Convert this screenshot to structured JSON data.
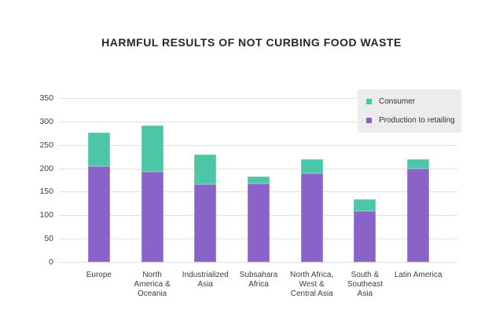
{
  "title": "HARMFUL RESULTS OF NOT CURBING FOOD WASTE",
  "colors": {
    "background": "#FFFFFF",
    "title_text": "#26262B",
    "axis_text": "#3D3D3D",
    "gridline": "#E0E0E0",
    "legend_background": "#ECECEC",
    "consumer": "#4DC5A7",
    "production_to_retailing": "#8A63C8"
  },
  "legend": {
    "items": [
      {
        "label": "Consumer",
        "color": "#4DC5A7"
      },
      {
        "label": "Production to retailing",
        "color": "#8A63C8"
      }
    ],
    "position": "top-right"
  },
  "chart_data": {
    "type": "bar",
    "stacked": true,
    "title": "HARMFUL RESULTS OF NOT CURBING FOOD WASTE",
    "categories": [
      "Europe",
      "North America & Oceania",
      "Industrialized Asia",
      "Subsahara Africa",
      "North Africa, West & Central Asia",
      "South & Southeast Asia",
      "Latin America"
    ],
    "category_label_lines": [
      [
        "Europe"
      ],
      [
        "North",
        "America &",
        "Oceania"
      ],
      [
        "Industrialized",
        "Asia"
      ],
      [
        "Subsahara",
        "Africa"
      ],
      [
        "North Africa,",
        "West &",
        "Central Asia"
      ],
      [
        "South &",
        "Southeast",
        "Asia"
      ],
      [
        "Latin America"
      ]
    ],
    "series": [
      {
        "name": "Consumer",
        "color": "#4DC5A7",
        "values": [
          72,
          100,
          63,
          15,
          30,
          25,
          20
        ]
      },
      {
        "name": "Production to retailing",
        "color": "#8A63C8",
        "values": [
          205,
          192,
          166,
          167,
          190,
          109,
          200
        ]
      }
    ],
    "stack_order_bottom_to_top": [
      1,
      0
    ],
    "totals": [
      277,
      292,
      229,
      182,
      220,
      134,
      220
    ],
    "xlabel": "",
    "ylabel": "",
    "ylim": [
      0,
      350
    ],
    "yticks": [
      0,
      50,
      100,
      150,
      200,
      250,
      300,
      350
    ],
    "grid": "horizontal",
    "legend_position": "top-right"
  }
}
